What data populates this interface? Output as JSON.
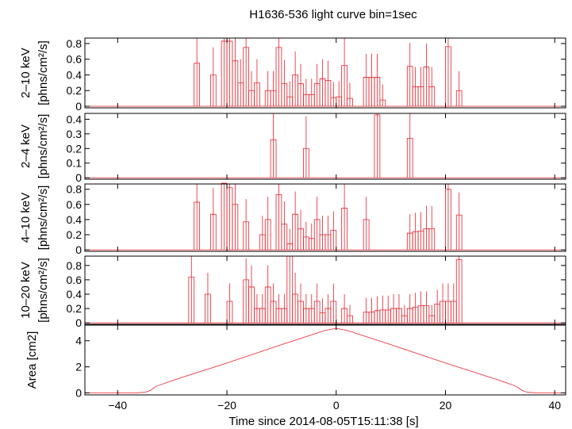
{
  "chart_data": {
    "type": "line",
    "title": "H1636-536 light curve bin=1sec",
    "xlabel": "Time since 2014-08-05T15:11:38 [s]",
    "xlim": [
      -46,
      42
    ],
    "x_ticks": [
      -40,
      -20,
      0,
      20,
      40
    ],
    "x_tick_labels": [
      "−40",
      "−20",
      "0",
      "20",
      "40"
    ],
    "series_color": "#e8202a",
    "panels": [
      {
        "name": "2-10",
        "ylabel": [
          "2–10 keV",
          "[phns/cm²/s]"
        ],
        "ylim": [
          -0.02,
          0.87
        ],
        "yticks": [
          0,
          0.2,
          0.4,
          0.6,
          0.8
        ],
        "ytick_labels": [
          "0",
          "0.2",
          "0.4",
          "0.6",
          "0.8"
        ],
        "bins": [
          [
            -26,
            0.55,
            0.35
          ],
          [
            -23,
            0.4,
            0.35
          ],
          [
            -21,
            0.83,
            0.35
          ],
          [
            -20,
            0.83,
            0.35
          ],
          [
            -19,
            0.58,
            0.35
          ],
          [
            -18,
            0.3,
            0.3
          ],
          [
            -17,
            0.75,
            0.35
          ],
          [
            -16,
            0.2,
            0.25
          ],
          [
            -15,
            0.3,
            0.3
          ],
          [
            -13,
            0.2,
            0.25
          ],
          [
            -12,
            0.2,
            0.25
          ],
          [
            -11,
            0.75,
            0.35
          ],
          [
            -10,
            0.29,
            0.3
          ],
          [
            -9,
            0.12,
            0.2
          ],
          [
            -8,
            0.4,
            0.3
          ],
          [
            -7,
            0.29,
            0.25
          ],
          [
            -6,
            0.15,
            0.2
          ],
          [
            -5,
            0.15,
            0.2
          ],
          [
            -4,
            0.29,
            0.25
          ],
          [
            -3,
            0.35,
            0.25
          ],
          [
            -2,
            0.33,
            0.25
          ],
          [
            -1,
            0.11,
            0.2
          ],
          [
            0,
            0.12,
            0.2
          ],
          [
            1,
            0.52,
            0.35
          ],
          [
            2,
            0.1,
            0.2
          ],
          [
            5,
            0.37,
            0.3
          ],
          [
            6,
            0.37,
            0.3
          ],
          [
            7,
            0.37,
            0.3
          ],
          [
            8,
            0.08,
            0.2
          ],
          [
            13,
            0.51,
            0.3
          ],
          [
            14,
            0.25,
            0.25
          ],
          [
            15,
            0.25,
            0.25
          ],
          [
            16,
            0.5,
            0.3
          ],
          [
            17,
            0.25,
            0.25
          ],
          [
            20,
            0.76,
            0.35
          ],
          [
            22,
            0.2,
            0.25
          ]
        ]
      },
      {
        "name": "2-4",
        "ylabel": [
          "2–4 keV",
          "[phns/cm²/s]"
        ],
        "ylim": [
          -0.01,
          0.44
        ],
        "yticks": [
          0,
          0.1,
          0.2,
          0.3,
          0.4
        ],
        "ytick_labels": [
          "0",
          "0.1",
          "0.2",
          "0.3",
          "0.4"
        ],
        "bins": [
          [
            -12,
            0.26,
            0.28
          ],
          [
            -6,
            0.2,
            0.22
          ],
          [
            7,
            0.43,
            0.3
          ],
          [
            13,
            0.27,
            0.28
          ]
        ]
      },
      {
        "name": "4-10",
        "ylabel": [
          "4–10 keV",
          "[phns/cm²/s]"
        ],
        "ylim": [
          -0.02,
          0.87
        ],
        "yticks": [
          0,
          0.2,
          0.4,
          0.6,
          0.8
        ],
        "ytick_labels": [
          "0",
          "0.2",
          "0.4",
          "0.6",
          "0.8"
        ],
        "bins": [
          [
            -26,
            0.63,
            0.35
          ],
          [
            -23,
            0.47,
            0.35
          ],
          [
            -21,
            0.88,
            0.35
          ],
          [
            -20,
            0.82,
            0.35
          ],
          [
            -19,
            0.6,
            0.35
          ],
          [
            -17,
            0.37,
            0.3
          ],
          [
            -14,
            0.2,
            0.25
          ],
          [
            -13,
            0.4,
            0.3
          ],
          [
            -11,
            0.73,
            0.35
          ],
          [
            -10,
            0.34,
            0.3
          ],
          [
            -9,
            0.08,
            0.2
          ],
          [
            -8,
            0.47,
            0.3
          ],
          [
            -7,
            0.28,
            0.25
          ],
          [
            -6,
            0.17,
            0.2
          ],
          [
            -5,
            0.15,
            0.2
          ],
          [
            -4,
            0.4,
            0.3
          ],
          [
            -3,
            0.2,
            0.25
          ],
          [
            -2,
            0.2,
            0.25
          ],
          [
            -1,
            0.26,
            0.25
          ],
          [
            1,
            0.55,
            0.35
          ],
          [
            5,
            0.4,
            0.3
          ],
          [
            13,
            0.22,
            0.25
          ],
          [
            14,
            0.24,
            0.25
          ],
          [
            15,
            0.25,
            0.25
          ],
          [
            16,
            0.28,
            0.3
          ],
          [
            17,
            0.28,
            0.3
          ],
          [
            20,
            0.8,
            0.35
          ],
          [
            22,
            0.46,
            0.3
          ]
        ]
      },
      {
        "name": "10-20",
        "ylabel": [
          "10–20 keV",
          "[phns/cm²/s]"
        ],
        "ylim": [
          -0.02,
          0.93
        ],
        "yticks": [
          0,
          0.2,
          0.4,
          0.6,
          0.8
        ],
        "ytick_labels": [
          "0",
          "0.2",
          "0.4",
          "0.6",
          "0.8"
        ],
        "bins": [
          [
            -27,
            0.64,
            0.3
          ],
          [
            -24,
            0.4,
            0.3
          ],
          [
            -20,
            0.3,
            0.25
          ],
          [
            -17,
            0.6,
            0.3
          ],
          [
            -16,
            0.5,
            0.3
          ],
          [
            -15,
            0.2,
            0.2
          ],
          [
            -14,
            0.2,
            0.2
          ],
          [
            -13,
            0.5,
            0.3
          ],
          [
            -12,
            0.3,
            0.25
          ],
          [
            -11,
            0.2,
            0.2
          ],
          [
            -10,
            0.2,
            0.2
          ],
          [
            -9,
            0.93,
            0.35
          ],
          [
            -8,
            0.4,
            0.3
          ],
          [
            -7,
            0.3,
            0.25
          ],
          [
            -6,
            0.2,
            0.2
          ],
          [
            -5,
            0.2,
            0.2
          ],
          [
            -4,
            0.3,
            0.25
          ],
          [
            -3,
            0.14,
            0.2
          ],
          [
            -2,
            0.2,
            0.2
          ],
          [
            -1,
            0.3,
            0.25
          ],
          [
            1,
            0.2,
            0.2
          ],
          [
            2,
            0.1,
            0.15
          ],
          [
            5,
            0.15,
            0.2
          ],
          [
            6,
            0.15,
            0.2
          ],
          [
            7,
            0.17,
            0.2
          ],
          [
            8,
            0.18,
            0.2
          ],
          [
            9,
            0.18,
            0.2
          ],
          [
            10,
            0.2,
            0.2
          ],
          [
            11,
            0.2,
            0.2
          ],
          [
            12,
            0.1,
            0.15
          ],
          [
            13,
            0.2,
            0.2
          ],
          [
            14,
            0.22,
            0.2
          ],
          [
            15,
            0.24,
            0.2
          ],
          [
            16,
            0.24,
            0.2
          ],
          [
            17,
            0.1,
            0.15
          ],
          [
            18,
            0.26,
            0.2
          ],
          [
            19,
            0.3,
            0.25
          ],
          [
            20,
            0.3,
            0.25
          ],
          [
            21,
            0.3,
            0.25
          ],
          [
            22,
            0.88,
            0.35
          ]
        ]
      },
      {
        "name": "area",
        "ylabel": [
          "Area [cm2]"
        ],
        "ylim": [
          -0.15,
          5.2
        ],
        "yticks": [
          0,
          2,
          4
        ],
        "ytick_labels": [
          "0",
          "2",
          "4"
        ],
        "curve": [
          [
            -46,
            0
          ],
          [
            -37,
            0
          ],
          [
            -35,
            0.05
          ],
          [
            -34,
            0.2
          ],
          [
            -33,
            0.5
          ],
          [
            -30,
            0.95
          ],
          [
            -20,
            2.3
          ],
          [
            -10,
            3.7
          ],
          [
            -2,
            4.8
          ],
          [
            0,
            4.95
          ],
          [
            2,
            4.8
          ],
          [
            10,
            3.7
          ],
          [
            20,
            2.3
          ],
          [
            30,
            0.95
          ],
          [
            33,
            0.5
          ],
          [
            34,
            0.2
          ],
          [
            35,
            0.05
          ],
          [
            37,
            0
          ],
          [
            42,
            0
          ]
        ]
      }
    ]
  }
}
